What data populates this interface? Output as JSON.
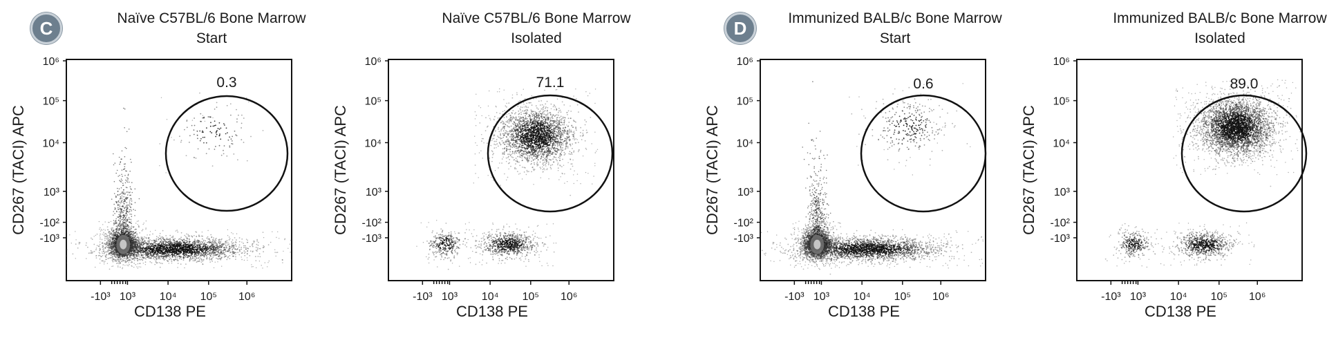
{
  "sections": [
    {
      "letter": "C"
    },
    {
      "letter": "D"
    }
  ],
  "chart_data": [
    {
      "type": "scatter",
      "title": "Naïve C57BL/6 Bone Marrow",
      "subtitle": "Start",
      "xlabel": "CD138 PE",
      "ylabel": "CD267 (TACI) APC",
      "x_ticks": [
        "-10³",
        "10³",
        "10⁴",
        "10⁵",
        "10⁶"
      ],
      "y_ticks": [
        "10⁶",
        "10⁵",
        "10⁴",
        "10³",
        "-10²",
        "-10³"
      ],
      "gate": {
        "shape": "ellipse",
        "label": "0.3",
        "percent": 0.3
      },
      "populations": [
        {
          "name": "main",
          "x_log": 3.0,
          "y_log": 2.0,
          "density": "high"
        },
        {
          "name": "tail",
          "x_log": 4.3,
          "y_log": 1.9,
          "density": "high"
        },
        {
          "name": "plasma",
          "x_log": 5.3,
          "y_log": 4.5,
          "density": "very low"
        }
      ]
    },
    {
      "type": "scatter",
      "title": "Naïve C57BL/6 Bone Marrow",
      "subtitle": "Isolated",
      "xlabel": "CD138 PE",
      "ylabel": "CD267 (TACI) APC",
      "x_ticks": [
        "-10³",
        "10³",
        "10⁴",
        "10⁵",
        "10⁶"
      ],
      "y_ticks": [
        "10⁶",
        "10⁵",
        "10⁴",
        "10³",
        "-10²",
        "-10³"
      ],
      "gate": {
        "shape": "ellipse",
        "label": "71.1",
        "percent": 71.1
      },
      "populations": [
        {
          "name": "plasma",
          "x_log": 5.3,
          "y_log": 4.4,
          "density": "high"
        },
        {
          "name": "neg-left",
          "x_log": 3.0,
          "y_log": 2.0,
          "density": "low"
        },
        {
          "name": "neg-mid",
          "x_log": 4.6,
          "y_log": 2.0,
          "density": "medium"
        }
      ]
    },
    {
      "type": "scatter",
      "title": "Immunized BALB/c Bone Marrow",
      "subtitle": "Start",
      "xlabel": "CD138 PE",
      "ylabel": "CD267 (TACI) APC",
      "x_ticks": [
        "-10³",
        "10³",
        "10⁴",
        "10⁵",
        "10⁶"
      ],
      "y_ticks": [
        "10⁶",
        "10⁵",
        "10⁴",
        "10³",
        "-10²",
        "-10³"
      ],
      "gate": {
        "shape": "ellipse",
        "label": "0.6",
        "percent": 0.6
      },
      "populations": [
        {
          "name": "main",
          "x_log": 3.0,
          "y_log": 2.0,
          "density": "high"
        },
        {
          "name": "tail",
          "x_log": 4.3,
          "y_log": 1.9,
          "density": "high"
        },
        {
          "name": "plasma",
          "x_log": 5.3,
          "y_log": 4.6,
          "density": "low"
        }
      ]
    },
    {
      "type": "scatter",
      "title": "Immunized BALB/c Bone Marrow",
      "subtitle": "Isolated",
      "xlabel": "CD138 PE",
      "ylabel": "CD267 (TACI) APC",
      "x_ticks": [
        "-10³",
        "10³",
        "10⁴",
        "10⁵",
        "10⁶"
      ],
      "y_ticks": [
        "10⁶",
        "10⁵",
        "10⁴",
        "10³",
        "-10²",
        "-10³"
      ],
      "gate": {
        "shape": "ellipse",
        "label": "89.0",
        "percent": 89.0
      },
      "populations": [
        {
          "name": "plasma",
          "x_log": 5.6,
          "y_log": 4.6,
          "density": "very high"
        },
        {
          "name": "neg-left",
          "x_log": 3.0,
          "y_log": 2.0,
          "density": "low"
        },
        {
          "name": "neg-mid",
          "x_log": 4.8,
          "y_log": 2.0,
          "density": "medium"
        }
      ]
    }
  ]
}
